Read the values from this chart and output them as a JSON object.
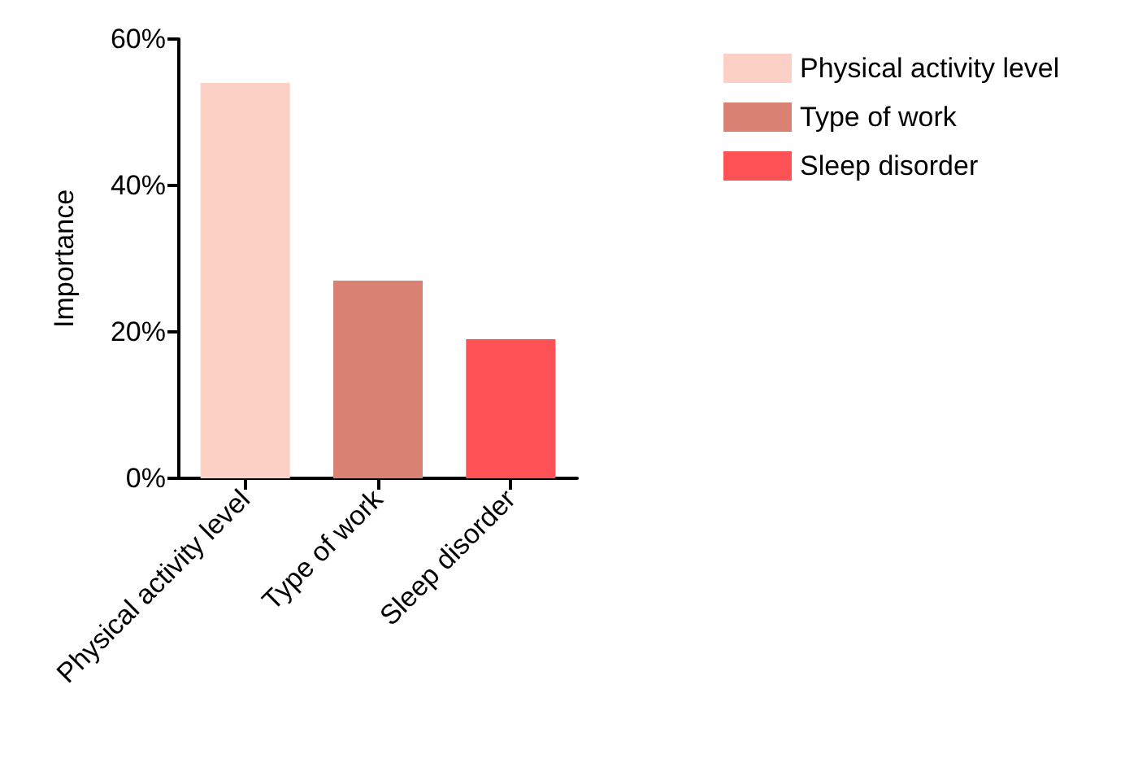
{
  "chart_data": {
    "type": "bar",
    "ylabel": "Importance",
    "categories": [
      "Physical activity level",
      "Type of work",
      "Sleep disorder"
    ],
    "series": [
      {
        "name": "Physical activity level",
        "color": "#fdd0c6",
        "values": [
          54,
          null,
          null
        ]
      },
      {
        "name": "Type of work",
        "color": "#d98273",
        "values": [
          null,
          27,
          null
        ]
      },
      {
        "name": "Sleep disorder",
        "color": "#fc5256",
        "values": [
          null,
          null,
          19
        ]
      }
    ],
    "ylim": [
      0,
      60
    ],
    "yticks": [
      {
        "value": 0,
        "label": "0%"
      },
      {
        "value": 20,
        "label": "20%"
      },
      {
        "value": 40,
        "label": "40%"
      },
      {
        "value": 60,
        "label": "60%"
      }
    ],
    "grid": false,
    "legend": "top right"
  }
}
